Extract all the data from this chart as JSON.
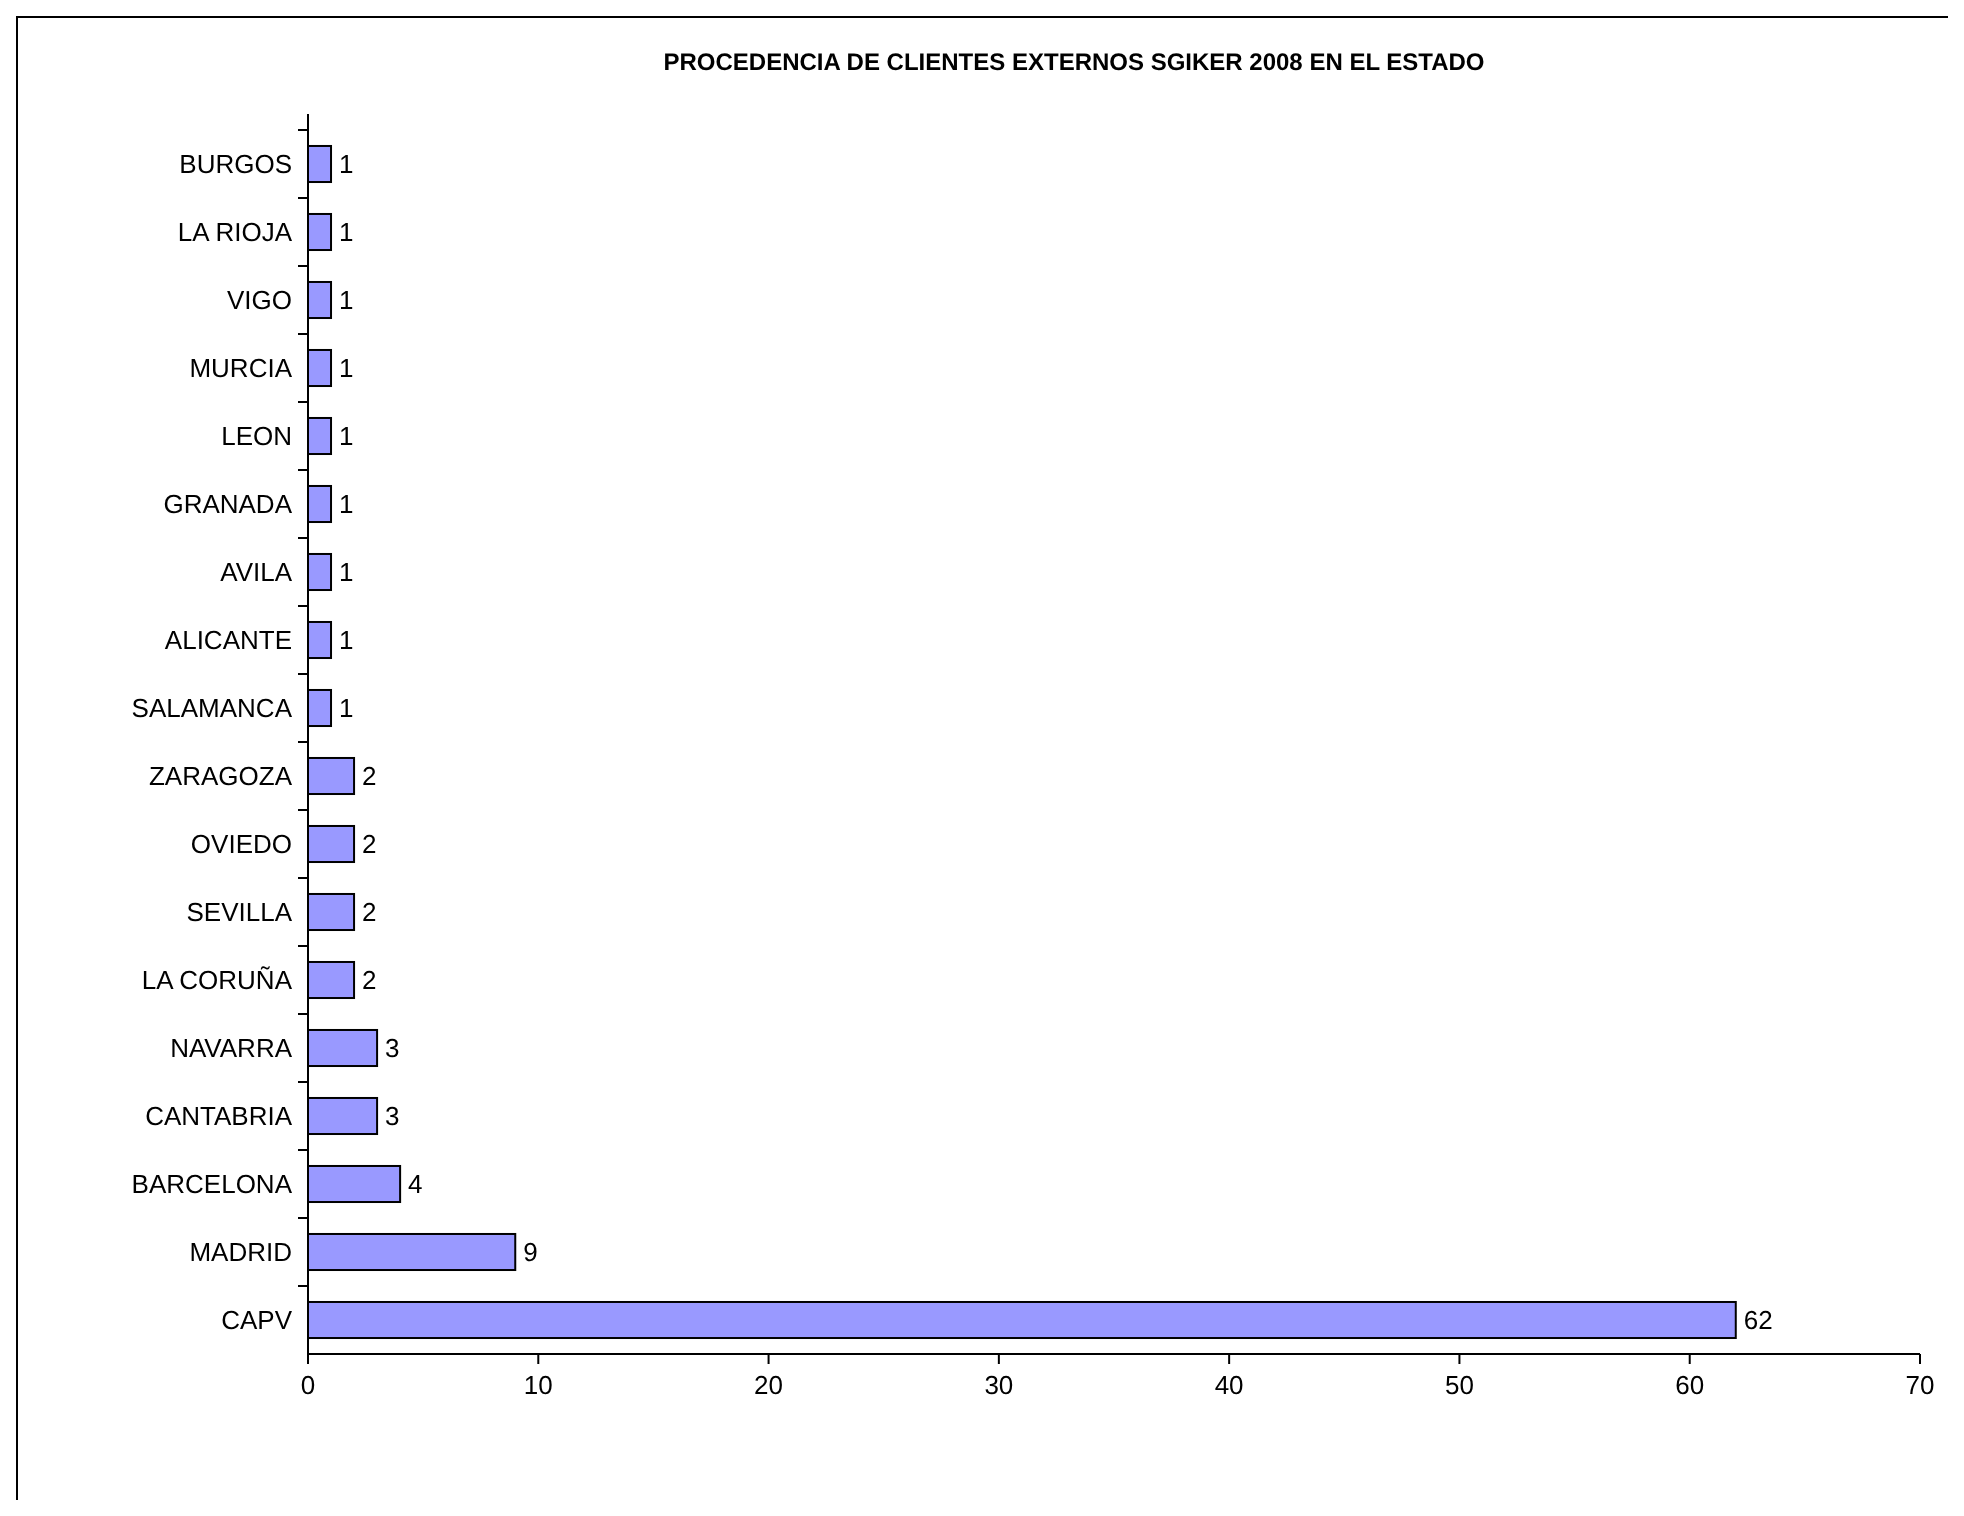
{
  "chart_data": {
    "type": "bar",
    "orientation": "horizontal",
    "title": "PROCEDENCIA DE CLIENTES EXTERNOS SGIKER 2008 EN EL ESTADO",
    "categories": [
      "BURGOS",
      "LA RIOJA",
      "VIGO",
      "MURCIA",
      "LEON",
      "GRANADA",
      "AVILA",
      "ALICANTE",
      "SALAMANCA",
      "ZARAGOZA",
      "OVIEDO",
      "SEVILLA",
      "LA CORUÑA",
      "NAVARRA",
      "CANTABRIA",
      "BARCELONA",
      "MADRID",
      "CAPV"
    ],
    "values": [
      1,
      1,
      1,
      1,
      1,
      1,
      1,
      1,
      1,
      2,
      2,
      2,
      2,
      3,
      3,
      4,
      9,
      62
    ],
    "color": "#9999ff",
    "xlim": [
      0,
      70
    ],
    "xticks": [
      0,
      10,
      20,
      30,
      40,
      50,
      60,
      70
    ],
    "data_labels": true,
    "grid": false
  }
}
